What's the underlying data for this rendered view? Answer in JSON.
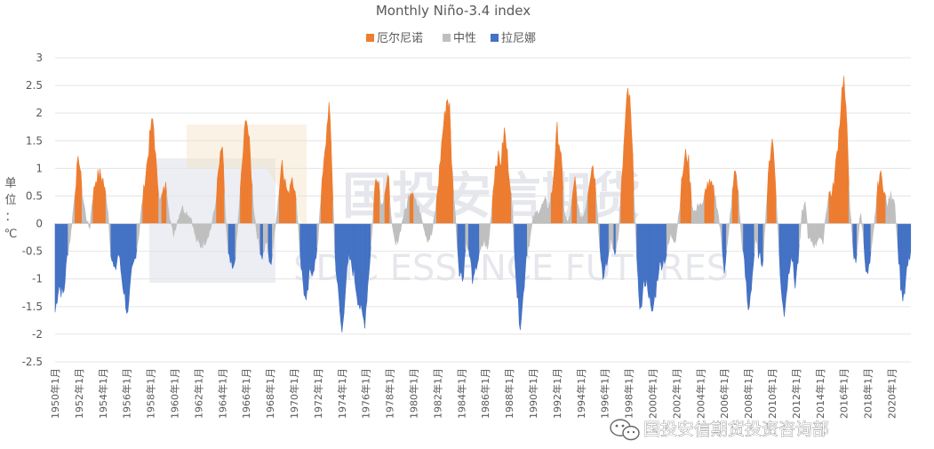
{
  "chart_data": {
    "type": "area",
    "title": "Monthly Niño-3.4 index",
    "ylabel": "单位：℃",
    "ylim": [
      -2.5,
      3
    ],
    "yticks": [
      3,
      2.5,
      2,
      1.5,
      1,
      0.5,
      0,
      -0.5,
      -1,
      -1.5,
      -2,
      -2.5
    ],
    "x_tick_labels": [
      "1950年1月",
      "1952年1月",
      "1954年1月",
      "1956年1月",
      "1958年1月",
      "1960年1月",
      "1962年1月",
      "1964年1月",
      "1966年1月",
      "1968年1月",
      "1970年1月",
      "1972年1月",
      "1974年1月",
      "1976年1月",
      "1978年1月",
      "1980年1月",
      "1982年1月",
      "1984年1月",
      "1986年1月",
      "1988年1月",
      "1990年1月",
      "1992年1月",
      "1994年1月",
      "1996年1月",
      "1998年1月",
      "2000年1月",
      "2002年1月",
      "2004年1月",
      "2006年1月",
      "2008年1月",
      "2010年1月",
      "2012年1月",
      "2014年1月",
      "2016年1月",
      "2018年1月",
      "2020年1月"
    ],
    "x_range": [
      1950.0,
      2021.6
    ],
    "legend_position": "top-center",
    "series": [
      {
        "name": "厄尔尼诺",
        "color": "#ed7d31"
      },
      {
        "name": "中性",
        "color": "#bfbfbf"
      },
      {
        "name": "拉尼娜",
        "color": "#4472c4"
      }
    ],
    "thresholds": {
      "el_nino": 0.5,
      "la_nina": -0.5
    },
    "keypoints": [
      [
        1950.0,
        -1.6
      ],
      [
        1950.3,
        -1.1
      ],
      [
        1950.7,
        -1.3
      ],
      [
        1951.0,
        -0.6
      ],
      [
        1951.3,
        -0.2
      ],
      [
        1951.5,
        0.2
      ],
      [
        1951.8,
        0.9
      ],
      [
        1952.0,
        1.2
      ],
      [
        1952.3,
        0.5
      ],
      [
        1952.6,
        0.1
      ],
      [
        1952.9,
        -0.1
      ],
      [
        1953.1,
        0.4
      ],
      [
        1953.4,
        0.8
      ],
      [
        1953.7,
        0.9
      ],
      [
        1954.0,
        0.8
      ],
      [
        1954.4,
        0.3
      ],
      [
        1954.7,
        -0.6
      ],
      [
        1955.0,
        -0.9
      ],
      [
        1955.3,
        -0.5
      ],
      [
        1955.6,
        -1.0
      ],
      [
        1955.9,
        -1.4
      ],
      [
        1956.1,
        -1.7
      ],
      [
        1956.4,
        -0.9
      ],
      [
        1956.7,
        -0.6
      ],
      [
        1957.0,
        -0.2
      ],
      [
        1957.3,
        0.4
      ],
      [
        1957.7,
        1.1
      ],
      [
        1958.0,
        1.7
      ],
      [
        1958.2,
        1.9
      ],
      [
        1958.5,
        0.9
      ],
      [
        1958.8,
        0.4
      ],
      [
        1959.1,
        0.6
      ],
      [
        1959.3,
        0.7
      ],
      [
        1959.6,
        0.1
      ],
      [
        1959.9,
        -0.2
      ],
      [
        1960.3,
        0.1
      ],
      [
        1960.6,
        0.3
      ],
      [
        1961.0,
        0.2
      ],
      [
        1961.4,
        0.1
      ],
      [
        1961.8,
        -0.3
      ],
      [
        1962.2,
        -0.4
      ],
      [
        1962.6,
        -0.3
      ],
      [
        1963.0,
        -0.1
      ],
      [
        1963.4,
        0.3
      ],
      [
        1963.7,
        1.0
      ],
      [
        1964.0,
        1.4
      ],
      [
        1964.2,
        0.3
      ],
      [
        1964.5,
        -0.6
      ],
      [
        1964.9,
        -0.9
      ],
      [
        1965.2,
        -0.3
      ],
      [
        1965.5,
        0.6
      ],
      [
        1965.8,
        1.5
      ],
      [
        1966.0,
        2.0
      ],
      [
        1966.3,
        1.3
      ],
      [
        1966.6,
        0.3
      ],
      [
        1966.9,
        -0.2
      ],
      [
        1967.3,
        -0.6
      ],
      [
        1967.7,
        -0.3
      ],
      [
        1968.0,
        -0.8
      ],
      [
        1968.3,
        -0.3
      ],
      [
        1968.7,
        0.5
      ],
      [
        1969.0,
        1.2
      ],
      [
        1969.2,
        0.8
      ],
      [
        1969.5,
        0.5
      ],
      [
        1969.8,
        0.9
      ],
      [
        1970.0,
        0.7
      ],
      [
        1970.3,
        0.1
      ],
      [
        1970.6,
        -0.8
      ],
      [
        1971.0,
        -1.5
      ],
      [
        1971.3,
        -0.9
      ],
      [
        1971.6,
        -0.8
      ],
      [
        1971.9,
        -0.6
      ],
      [
        1972.2,
        0.4
      ],
      [
        1972.6,
        1.3
      ],
      [
        1972.9,
        2.2
      ],
      [
        1973.1,
        1.4
      ],
      [
        1973.4,
        -0.5
      ],
      [
        1973.7,
        -1.3
      ],
      [
        1974.0,
        -2.0
      ],
      [
        1974.3,
        -1.1
      ],
      [
        1974.6,
        -0.6
      ],
      [
        1975.0,
        -0.9
      ],
      [
        1975.3,
        -1.3
      ],
      [
        1975.6,
        -1.6
      ],
      [
        1975.9,
        -1.8
      ],
      [
        1976.2,
        -1.0
      ],
      [
        1976.5,
        -0.2
      ],
      [
        1976.8,
        0.8
      ],
      [
        1977.0,
        0.9
      ],
      [
        1977.3,
        0.3
      ],
      [
        1977.6,
        0.6
      ],
      [
        1977.9,
        0.8
      ],
      [
        1978.2,
        -0.1
      ],
      [
        1978.5,
        -0.4
      ],
      [
        1978.8,
        -0.2
      ],
      [
        1979.1,
        0.1
      ],
      [
        1979.4,
        0.3
      ],
      [
        1979.7,
        0.6
      ],
      [
        1980.0,
        0.6
      ],
      [
        1980.3,
        0.3
      ],
      [
        1980.6,
        0.2
      ],
      [
        1980.9,
        -0.1
      ],
      [
        1981.2,
        -0.3
      ],
      [
        1981.5,
        -0.2
      ],
      [
        1981.8,
        0.2
      ],
      [
        1982.1,
        0.8
      ],
      [
        1982.4,
        1.6
      ],
      [
        1982.8,
        2.3
      ],
      [
        1983.0,
        2.1
      ],
      [
        1983.2,
        1.0
      ],
      [
        1983.5,
        0.1
      ],
      [
        1983.8,
        -0.8
      ],
      [
        1984.1,
        -1.0
      ],
      [
        1984.4,
        -0.3
      ],
      [
        1984.7,
        -0.6
      ],
      [
        1985.0,
        -1.1
      ],
      [
        1985.3,
        -0.7
      ],
      [
        1985.6,
        -0.5
      ],
      [
        1985.9,
        -0.3
      ],
      [
        1986.2,
        -0.5
      ],
      [
        1986.5,
        0.2
      ],
      [
        1986.8,
        1.0
      ],
      [
        1987.0,
        1.2
      ],
      [
        1987.3,
        1.1
      ],
      [
        1987.6,
        1.7
      ],
      [
        1987.9,
        1.1
      ],
      [
        1988.1,
        0.7
      ],
      [
        1988.4,
        -0.3
      ],
      [
        1988.7,
        -1.4
      ],
      [
        1988.9,
        -1.8
      ],
      [
        1989.1,
        -1.5
      ],
      [
        1989.4,
        -0.6
      ],
      [
        1989.7,
        -0.3
      ],
      [
        1990.0,
        0.1
      ],
      [
        1990.3,
        0.2
      ],
      [
        1990.7,
        0.3
      ],
      [
        1991.0,
        0.4
      ],
      [
        1991.3,
        0.3
      ],
      [
        1991.6,
        0.6
      ],
      [
        1992.0,
        1.7
      ],
      [
        1992.3,
        1.3
      ],
      [
        1992.6,
        0.2
      ],
      [
        1992.9,
        0.0
      ],
      [
        1993.2,
        0.3
      ],
      [
        1993.5,
        0.8
      ],
      [
        1993.8,
        0.2
      ],
      [
        1994.1,
        0.1
      ],
      [
        1994.4,
        0.3
      ],
      [
        1994.7,
        0.8
      ],
      [
        1995.0,
        1.1
      ],
      [
        1995.3,
        0.5
      ],
      [
        1995.6,
        -0.5
      ],
      [
        1995.9,
        -1.0
      ],
      [
        1996.2,
        -0.7
      ],
      [
        1996.5,
        -0.3
      ],
      [
        1996.8,
        -0.5
      ],
      [
        1997.1,
        -0.3
      ],
      [
        1997.4,
        0.7
      ],
      [
        1997.7,
        1.8
      ],
      [
        1997.9,
        2.4
      ],
      [
        1998.1,
        2.2
      ],
      [
        1998.4,
        0.8
      ],
      [
        1998.7,
        -0.9
      ],
      [
        1999.0,
        -1.6
      ],
      [
        1999.3,
        -1.0
      ],
      [
        1999.6,
        -1.1
      ],
      [
        1999.9,
        -1.7
      ],
      [
        2000.2,
        -1.3
      ],
      [
        2000.5,
        -0.8
      ],
      [
        2000.8,
        -0.7
      ],
      [
        2001.1,
        -0.6
      ],
      [
        2001.5,
        -0.2
      ],
      [
        2001.9,
        -0.3
      ],
      [
        2002.2,
        0.2
      ],
      [
        2002.5,
        0.9
      ],
      [
        2002.8,
        1.3
      ],
      [
        2003.0,
        1.1
      ],
      [
        2003.3,
        0.3
      ],
      [
        2003.6,
        0.2
      ],
      [
        2003.9,
        0.4
      ],
      [
        2004.2,
        0.3
      ],
      [
        2004.5,
        0.7
      ],
      [
        2004.8,
        0.7
      ],
      [
        2005.1,
        0.6
      ],
      [
        2005.4,
        0.3
      ],
      [
        2005.7,
        -0.2
      ],
      [
        2006.0,
        -0.8
      ],
      [
        2006.3,
        -0.3
      ],
      [
        2006.6,
        0.4
      ],
      [
        2006.9,
        1.0
      ],
      [
        2007.1,
        0.7
      ],
      [
        2007.4,
        -0.2
      ],
      [
        2007.7,
        -0.8
      ],
      [
        2008.0,
        -1.6
      ],
      [
        2008.3,
        -1.0
      ],
      [
        2008.6,
        -0.3
      ],
      [
        2008.9,
        -0.6
      ],
      [
        2009.2,
        -0.7
      ],
      [
        2009.5,
        0.3
      ],
      [
        2009.8,
        1.2
      ],
      [
        2010.0,
        1.6
      ],
      [
        2010.2,
        1.0
      ],
      [
        2010.5,
        -0.2
      ],
      [
        2010.8,
        -1.4
      ],
      [
        2011.0,
        -1.6
      ],
      [
        2011.3,
        -1.0
      ],
      [
        2011.6,
        -0.5
      ],
      [
        2011.9,
        -1.1
      ],
      [
        2012.2,
        -0.6
      ],
      [
        2012.5,
        0.2
      ],
      [
        2012.8,
        0.4
      ],
      [
        2013.0,
        -0.3
      ],
      [
        2013.3,
        -0.3
      ],
      [
        2013.6,
        -0.4
      ],
      [
        2013.9,
        -0.2
      ],
      [
        2014.2,
        -0.4
      ],
      [
        2014.5,
        0.2
      ],
      [
        2014.8,
        0.6
      ],
      [
        2015.0,
        0.5
      ],
      [
        2015.3,
        1.0
      ],
      [
        2015.6,
        1.7
      ],
      [
        2015.9,
        2.6
      ],
      [
        2016.0,
        2.6
      ],
      [
        2016.3,
        1.5
      ],
      [
        2016.5,
        0.3
      ],
      [
        2016.8,
        -0.6
      ],
      [
        2017.0,
        -0.7
      ],
      [
        2017.2,
        -0.2
      ],
      [
        2017.4,
        0.2
      ],
      [
        2017.7,
        -0.4
      ],
      [
        2017.9,
        -1.0
      ],
      [
        2018.2,
        -0.7
      ],
      [
        2018.5,
        -0.1
      ],
      [
        2018.8,
        0.6
      ],
      [
        2019.0,
        0.9
      ],
      [
        2019.3,
        0.7
      ],
      [
        2019.6,
        0.3
      ],
      [
        2019.9,
        0.5
      ],
      [
        2020.2,
        0.5
      ],
      [
        2020.5,
        -0.4
      ],
      [
        2020.8,
        -1.2
      ],
      [
        2021.0,
        -1.4
      ],
      [
        2021.3,
        -0.8
      ],
      [
        2021.6,
        -0.5
      ]
    ]
  },
  "watermark": {
    "cn": "国投安信期货",
    "en": "SDIC ESSENCE FUTURES"
  },
  "credit": {
    "text": "国投安信期货投资咨询部",
    "icon": "wechat-icon"
  }
}
